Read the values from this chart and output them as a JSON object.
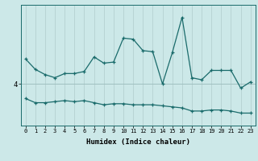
{
  "x": [
    0,
    1,
    2,
    3,
    4,
    5,
    6,
    7,
    8,
    9,
    10,
    11,
    12,
    13,
    14,
    15,
    16,
    17,
    18,
    19,
    20,
    21,
    22,
    23
  ],
  "line1": [
    5.2,
    4.7,
    4.45,
    4.3,
    4.5,
    4.5,
    4.6,
    5.3,
    5.0,
    5.05,
    6.2,
    6.15,
    5.6,
    5.55,
    4.0,
    5.5,
    7.2,
    4.3,
    4.2,
    4.65,
    4.65,
    4.65,
    3.8,
    4.1
  ],
  "line2": [
    3.3,
    3.1,
    3.1,
    3.15,
    3.2,
    3.15,
    3.2,
    3.1,
    3.0,
    3.05,
    3.05,
    3.0,
    3.0,
    3.0,
    2.95,
    2.9,
    2.85,
    2.7,
    2.7,
    2.75,
    2.75,
    2.7,
    2.6,
    2.6
  ],
  "ytick_vals": [
    4
  ],
  "ytick_labels": [
    "4"
  ],
  "xlabel": "Humidex (Indice chaleur)",
  "bg_color": "#cce8e8",
  "line_color": "#1a6b6b",
  "vgrid_color": "#b8d4d4",
  "hgrid_color": "#a0c0c0",
  "ylim_min": 2.0,
  "ylim_max": 7.8,
  "xlim_min": -0.5,
  "xlim_max": 23.5,
  "figw": 3.2,
  "figh": 2.0,
  "dpi": 100
}
